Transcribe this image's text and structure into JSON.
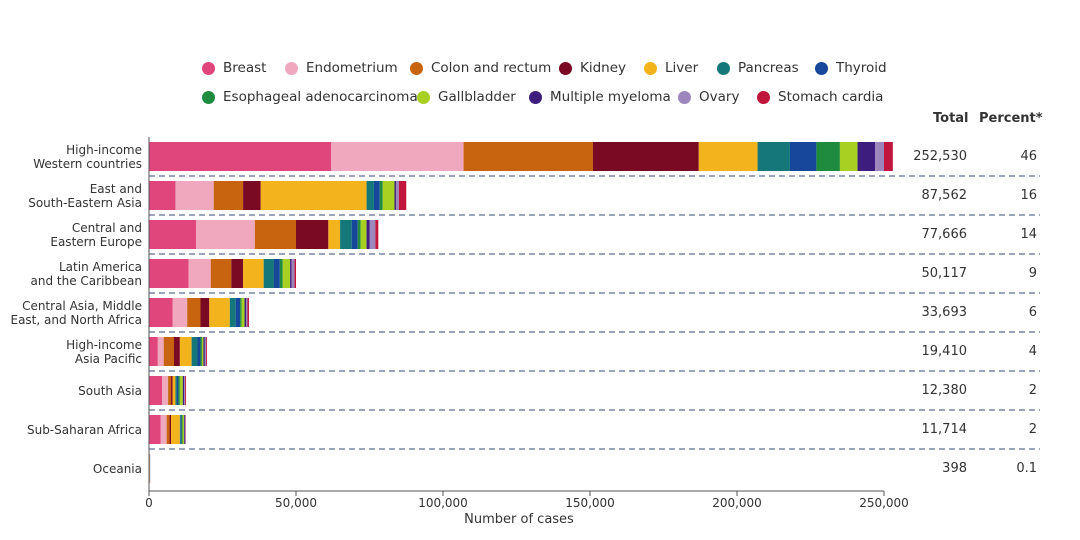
{
  "colors": {
    "Breast": "#e0457b",
    "Endometrium": "#f0a8bf",
    "Colon and rectum": "#c8630f",
    "Kidney": "#7a0a23",
    "Liver": "#f2b31d",
    "Pancreas": "#16777a",
    "Thyroid": "#16479a",
    "Esophageal adenocarcinoma": "#1f8b3f",
    "Gallbladder": "#a8d022",
    "Multiple myeloma": "#3d1e7e",
    "Ovary": "#9d86bc",
    "Stomach cardia": "#c0163b"
  },
  "chart_data": {
    "type": "bar",
    "orientation": "horizontal",
    "stacked": true,
    "xlabel": "Number of cases",
    "xlim": [
      0,
      250000
    ],
    "xticks": [
      0,
      50000,
      100000,
      150000,
      200000,
      250000
    ],
    "xtick_labels": [
      "0",
      "50,000",
      "100,000",
      "150,000",
      "200,000",
      "250,000"
    ],
    "legend": [
      "Breast",
      "Endometrium",
      "Colon and rectum",
      "Kidney",
      "Liver",
      "Pancreas",
      "Thyroid",
      "Esophageal adenocarcinoma",
      "Gallbladder",
      "Multiple myeloma",
      "Ovary",
      "Stomach cardia"
    ],
    "columns": {
      "total": "Total",
      "percent": "Percent*"
    },
    "categories": [
      {
        "label": [
          "High-income",
          "Western countries"
        ],
        "total": "252,530",
        "percent": "46",
        "values": [
          62000,
          45000,
          44000,
          36000,
          20000,
          11000,
          9000,
          8000,
          6000,
          6000,
          3000,
          3000
        ]
      },
      {
        "label": [
          "East and",
          "South-Eastern Asia"
        ],
        "total": "87,562",
        "percent": "16",
        "values": [
          9000,
          13000,
          10000,
          6000,
          36000,
          2500,
          2000,
          1000,
          4000,
          500,
          1000,
          2500
        ]
      },
      {
        "label": [
          "Central and",
          "Eastern Europe"
        ],
        "total": "77,666",
        "percent": "14",
        "values": [
          16000,
          20000,
          14000,
          11000,
          4000,
          4000,
          2000,
          1000,
          2000,
          1000,
          2000,
          1000
        ]
      },
      {
        "label": [
          "Latin America",
          "and the Caribbean"
        ],
        "total": "50,117",
        "percent": "9",
        "values": [
          13500,
          7500,
          7000,
          4000,
          7000,
          3500,
          2000,
          1000,
          2500,
          500,
          1000,
          500
        ]
      },
      {
        "label": [
          "Central Asia, Middle",
          "East, and North Africa"
        ],
        "total": "33,693",
        "percent": "6",
        "values": [
          8000,
          5000,
          4500,
          3000,
          7000,
          2000,
          1500,
          500,
          1000,
          500,
          500,
          500
        ]
      },
      {
        "label": [
          "High-income",
          "Asia Pacific"
        ],
        "total": "19,410",
        "percent": "4",
        "values": [
          3000,
          2000,
          3500,
          2000,
          4000,
          2000,
          1000,
          500,
          500,
          500,
          400,
          300
        ]
      },
      {
        "label": [
          "South Asia"
        ],
        "total": "12,380",
        "percent": "2",
        "values": [
          4500,
          2000,
          1000,
          500,
          1000,
          500,
          500,
          500,
          1000,
          500,
          300,
          300
        ]
      },
      {
        "label": [
          "Sub-Saharan Africa"
        ],
        "total": "11,714",
        "percent": "2",
        "values": [
          4000,
          2000,
          1000,
          500,
          3000,
          300,
          300,
          300,
          500,
          300,
          200,
          100
        ]
      },
      {
        "label": [
          "Oceania"
        ],
        "total": "398",
        "percent": "0.1",
        "values": [
          150,
          80,
          60,
          20,
          20,
          10,
          20,
          10,
          5,
          10,
          10,
          3
        ]
      }
    ]
  }
}
